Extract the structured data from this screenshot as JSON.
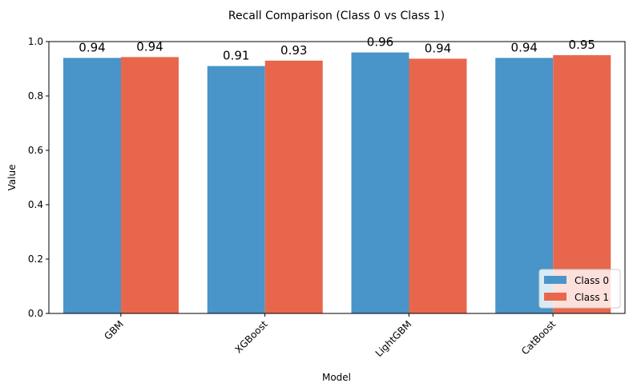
{
  "chart_data": {
    "type": "bar",
    "title": "Recall Comparison (Class 0 vs Class 1)",
    "xlabel": "Model",
    "ylabel": "Value",
    "categories": [
      "GBM",
      "XGBoost",
      "LightGBM",
      "CatBoost"
    ],
    "series": [
      {
        "name": "Class 0",
        "color": "#4994c8",
        "values": [
          0.94,
          0.91,
          0.96,
          0.94
        ],
        "labels": [
          "0.94",
          "0.91",
          "0.96",
          "0.94"
        ]
      },
      {
        "name": "Class 1",
        "color": "#e8674c",
        "values": [
          0.943,
          0.93,
          0.937,
          0.95
        ],
        "labels": [
          "0.94",
          "0.93",
          "0.94",
          "0.95"
        ]
      }
    ],
    "ylim": [
      0,
      1.0
    ],
    "yticks": [
      "0.0",
      "0.2",
      "0.4",
      "0.6",
      "0.8",
      "1.0"
    ],
    "grid": false,
    "legend_position": "bottom-right"
  }
}
